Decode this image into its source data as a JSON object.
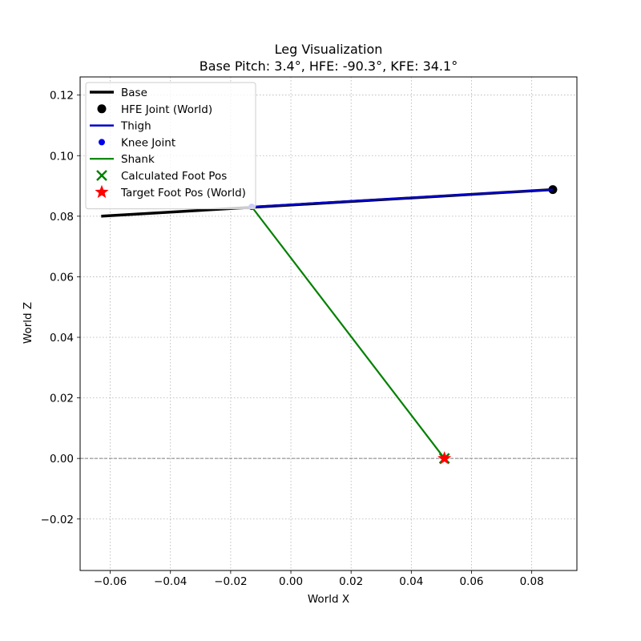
{
  "chart_data": {
    "type": "line",
    "title_line1": "Leg Visualization",
    "title_line2": "Base Pitch: 3.4°, HFE: -90.3°, KFE: 34.1°",
    "xlabel": "World X",
    "ylabel": "World Z",
    "xlim": [
      -0.07,
      0.095
    ],
    "ylim": [
      -0.037,
      0.126
    ],
    "xticks": [
      -0.06,
      -0.04,
      -0.02,
      0.0,
      0.02,
      0.04,
      0.06,
      0.08
    ],
    "xtick_labels": [
      "−0.06",
      "−0.04",
      "−0.02",
      "0.00",
      "0.02",
      "0.04",
      "0.06",
      "0.08"
    ],
    "yticks": [
      -0.02,
      0.0,
      0.02,
      0.04,
      0.06,
      0.08,
      0.1,
      0.12
    ],
    "ytick_labels": [
      "−0.02",
      "0.00",
      "0.02",
      "0.04",
      "0.06",
      "0.08",
      "0.10",
      "0.12"
    ],
    "grid": true,
    "legend_position": "upper-left",
    "ground_line_y": 0.0,
    "series": [
      {
        "name": "Base",
        "kind": "line",
        "color": "#000000",
        "x": [
          -0.063,
          0.087
        ],
        "y": [
          0.08,
          0.0888
        ]
      },
      {
        "name": "HFE Joint (World)",
        "kind": "marker-circle",
        "color": "#000000",
        "x": [
          0.087
        ],
        "y": [
          0.0888
        ]
      },
      {
        "name": "Thigh",
        "kind": "line",
        "color": "#0000cc",
        "x": [
          0.087,
          -0.013
        ],
        "y": [
          0.0888,
          0.0831
        ]
      },
      {
        "name": "Knee Joint",
        "kind": "marker-dot",
        "color": "#0000ee",
        "x": [
          -0.013
        ],
        "y": [
          0.0831
        ]
      },
      {
        "name": "Shank",
        "kind": "line",
        "color": "#008000",
        "x": [
          -0.013,
          0.051
        ],
        "y": [
          0.0831,
          0.0
        ]
      },
      {
        "name": "Calculated Foot Pos",
        "kind": "marker-x",
        "color": "#008000",
        "x": [
          0.051
        ],
        "y": [
          0.0
        ]
      },
      {
        "name": "Target Foot Pos (World)",
        "kind": "marker-star",
        "color": "#ff0000",
        "x": [
          0.051
        ],
        "y": [
          0.0
        ]
      }
    ]
  }
}
